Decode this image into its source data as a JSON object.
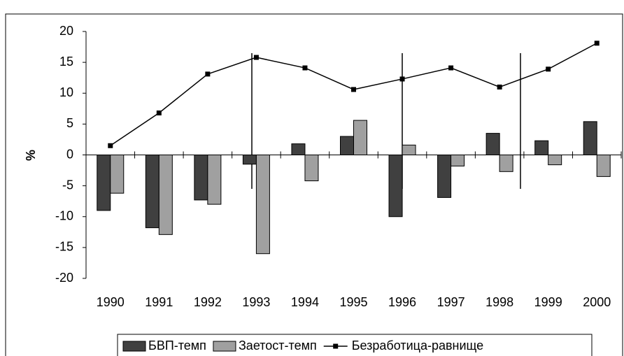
{
  "chart_data": {
    "type": "bar",
    "y_label": "%",
    "categories": [
      "1990",
      "1991",
      "1992",
      "1993",
      "1994",
      "1995",
      "1996",
      "1997",
      "1998",
      "1999",
      "2000"
    ],
    "series": [
      {
        "name": "БВП-темп",
        "color": "#404040",
        "values": [
          -9,
          -11.8,
          -7.3,
          -1.5,
          1.8,
          3,
          -10,
          -6.9,
          3.5,
          2.3,
          5.4
        ]
      },
      {
        "name": "Заетост-темп",
        "color": "#a0a0a0",
        "values": [
          -6.2,
          -12.9,
          -8,
          -16,
          -4.2,
          5.6,
          1.6,
          -1.8,
          -2.7,
          -1.6,
          -3.5
        ]
      },
      {
        "name": "Безработица-равнище",
        "color": "#000000",
        "type": "line",
        "values": [
          1.5,
          6.8,
          13.1,
          15.8,
          14.1,
          10.6,
          12.3,
          14.1,
          11.0,
          13.9,
          18.1
        ]
      }
    ],
    "ylim": [
      -20,
      20
    ],
    "yticks": [
      -20,
      -15,
      -10,
      -5,
      0,
      5,
      10,
      15,
      20
    ]
  }
}
